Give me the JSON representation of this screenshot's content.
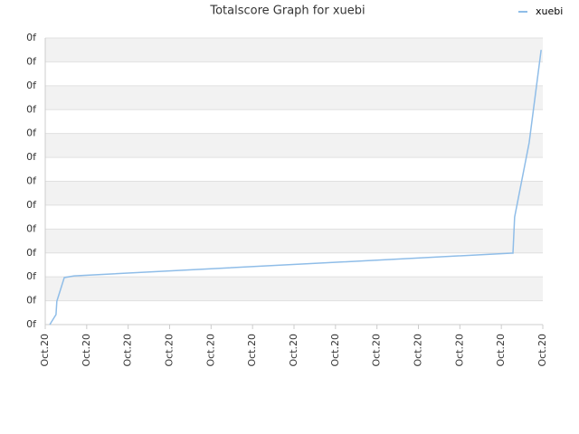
{
  "chart_data": {
    "type": "line",
    "title": "Totalscore Graph for xuebi",
    "series": [
      {
        "name": "xuebi",
        "color": "#8fbde8",
        "x": [
          0.11,
          0.26,
          0.28,
          0.46,
          0.7,
          11.24,
          11.28,
          11.32,
          11.67,
          11.96
        ],
        "values": [
          0,
          0.42,
          0.98,
          1.97,
          2.04,
          2.99,
          2.99,
          4.5,
          7.61,
          11.5
        ]
      }
    ],
    "xlim": [
      0,
      12
    ],
    "xticks": [
      {
        "value": 0,
        "label": "Oct.20"
      },
      {
        "value": 1,
        "label": "Oct.20"
      },
      {
        "value": 2,
        "label": "Oct.20"
      },
      {
        "value": 3,
        "label": "Oct.20"
      },
      {
        "value": 4,
        "label": "Oct.20"
      },
      {
        "value": 5,
        "label": "Oct.20"
      },
      {
        "value": 6,
        "label": "Oct.20"
      },
      {
        "value": 7,
        "label": "Oct.20"
      },
      {
        "value": 8,
        "label": "Oct.20"
      },
      {
        "value": 9,
        "label": "Oct.20"
      },
      {
        "value": 10,
        "label": "Oct.20"
      },
      {
        "value": 11,
        "label": "Oct.20"
      },
      {
        "value": 12,
        "label": "Oct.20"
      }
    ],
    "ylim": [
      0,
      12
    ],
    "yticks": [
      {
        "value": 0,
        "label": "0f"
      },
      {
        "value": 1,
        "label": "0f"
      },
      {
        "value": 2,
        "label": "0f"
      },
      {
        "value": 3,
        "label": "0f"
      },
      {
        "value": 4,
        "label": "0f"
      },
      {
        "value": 5,
        "label": "0f"
      },
      {
        "value": 6,
        "label": "0f"
      },
      {
        "value": 7,
        "label": "0f"
      },
      {
        "value": 8,
        "label": "0f"
      },
      {
        "value": 9,
        "label": "0f"
      },
      {
        "value": 10,
        "label": "0f"
      },
      {
        "value": 11,
        "label": "0f"
      },
      {
        "value": 12,
        "label": "0f"
      }
    ],
    "grid": true,
    "legend": "top-right"
  }
}
